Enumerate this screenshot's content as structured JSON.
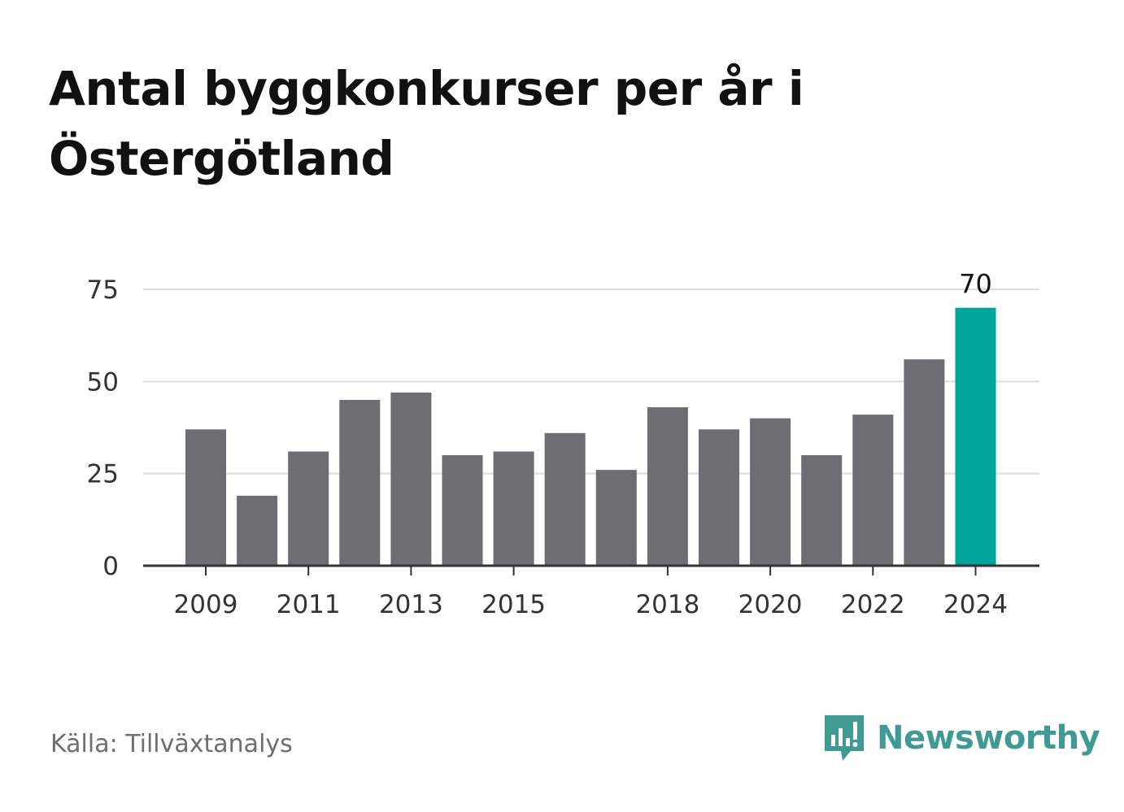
{
  "title": "Antal byggkonkurser per år i Östergötland",
  "source": "Källa: Tillväxtanalys",
  "brand": {
    "name": "Newsworthy",
    "icon": "chart-bubble-icon",
    "color": "#3f9a94"
  },
  "colors": {
    "bar": "#6e6d73",
    "highlight": "#00a49a",
    "grid": "#dddddd",
    "axis": "#333333"
  },
  "chart_data": {
    "type": "bar",
    "categories": [
      "2009",
      "2010",
      "2011",
      "2012",
      "2013",
      "2014",
      "2015",
      "2016",
      "2017",
      "2018",
      "2019",
      "2020",
      "2021",
      "2022",
      "2023",
      "2024"
    ],
    "values": [
      37,
      19,
      31,
      45,
      47,
      30,
      31,
      36,
      26,
      43,
      37,
      40,
      30,
      41,
      56,
      70
    ],
    "x_tick_labels": [
      "2009",
      "2011",
      "2013",
      "2015",
      "2018",
      "2020",
      "2022",
      "2024"
    ],
    "y_ticks": [
      0,
      25,
      50,
      75
    ],
    "ylim": [
      0,
      75
    ],
    "highlight": {
      "category": "2024",
      "label": "70"
    },
    "grid": true,
    "xlabel": "",
    "ylabel": ""
  }
}
